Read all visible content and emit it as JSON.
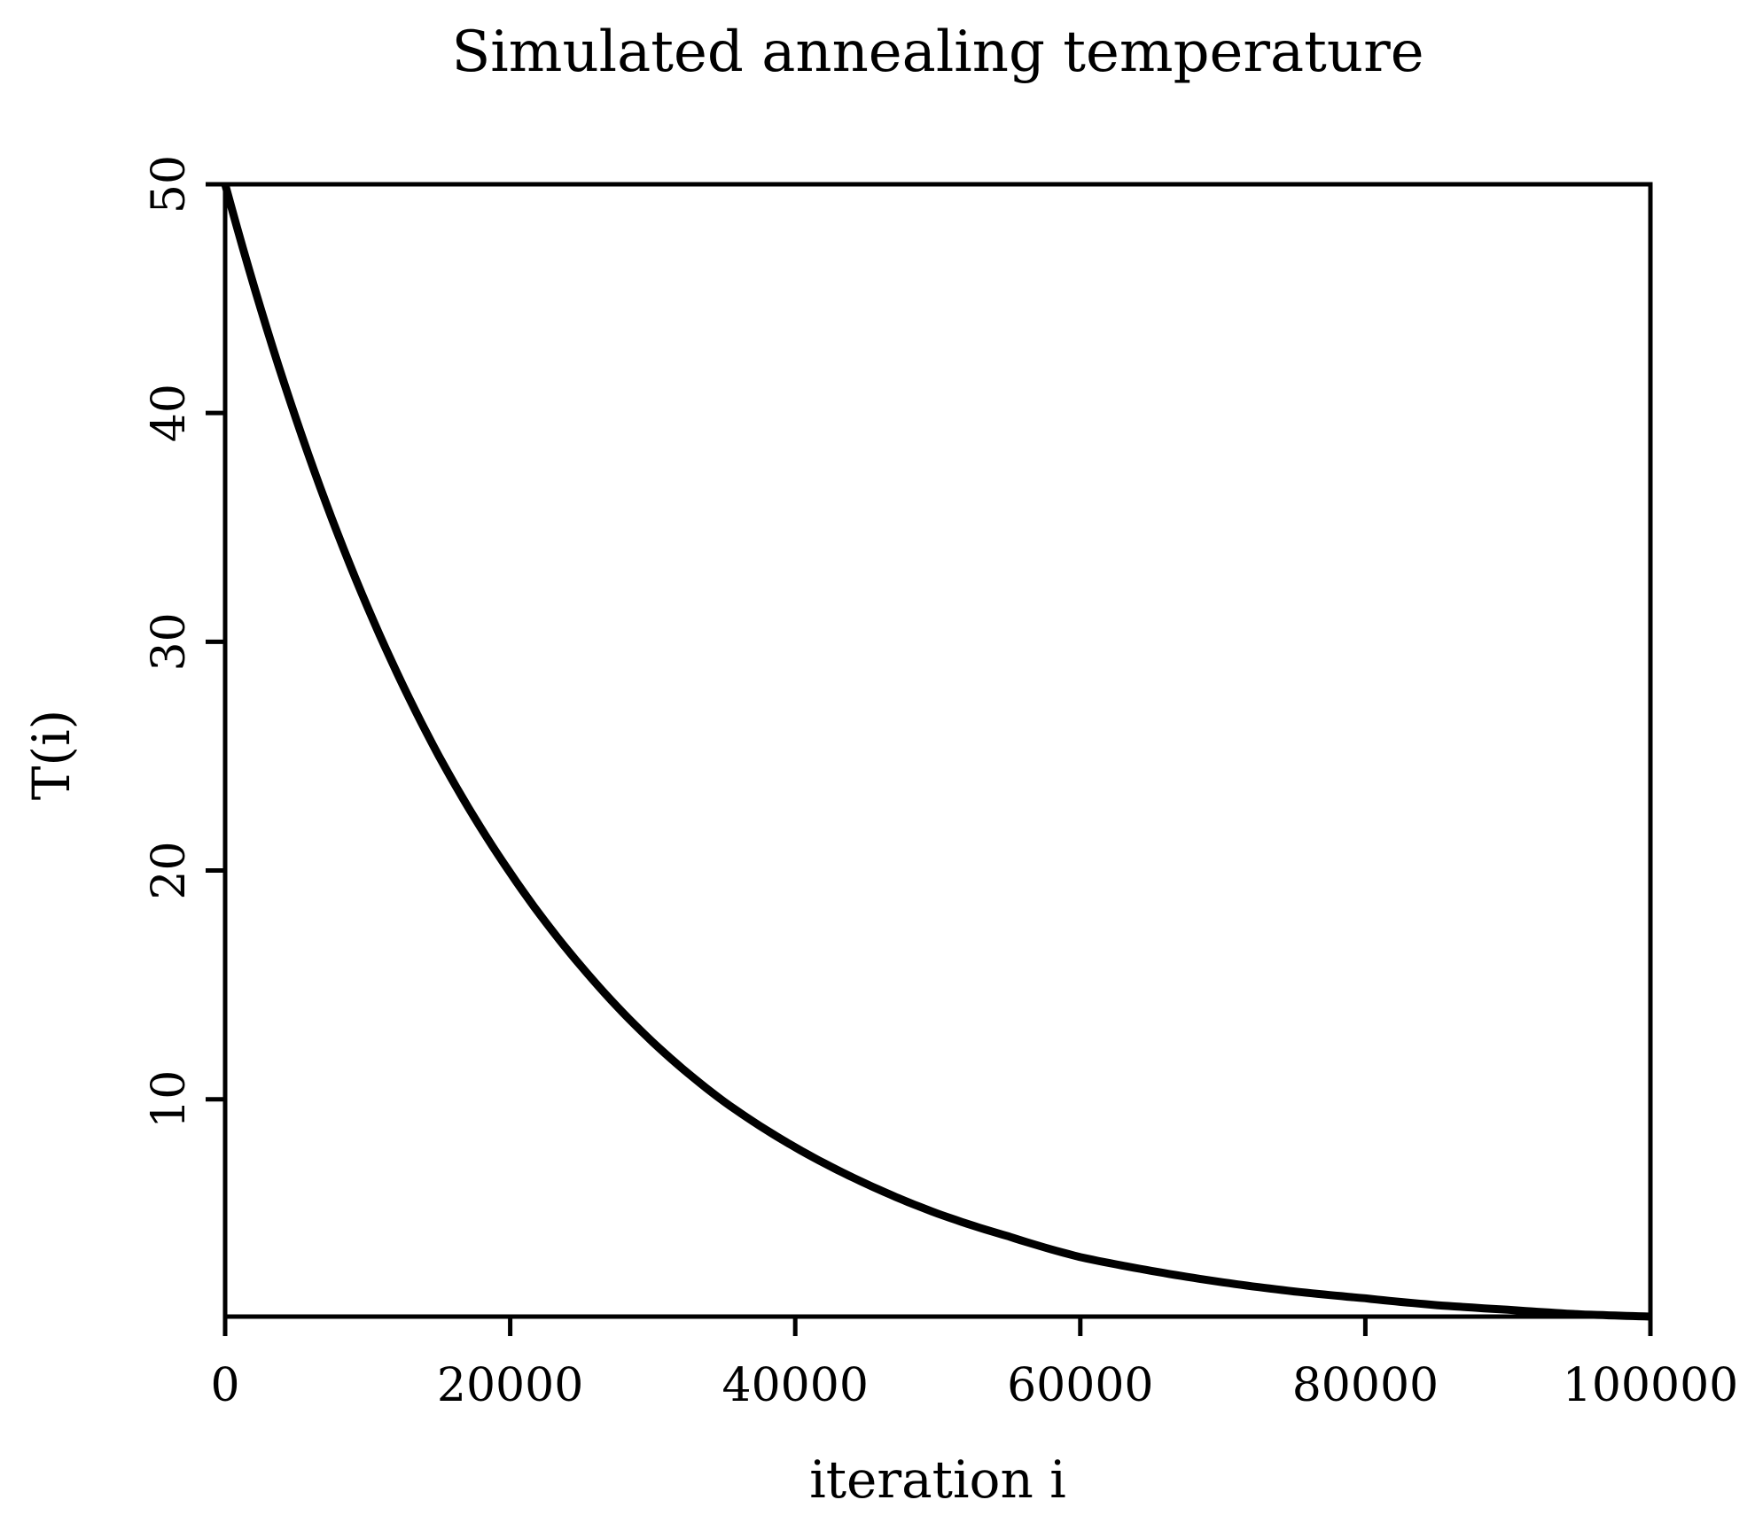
{
  "chart_data": {
    "type": "line",
    "title": "Simulated annealing temperature",
    "xlabel": "iteration i",
    "ylabel": "T(i)",
    "xlim": [
      0,
      100000
    ],
    "ylim": [
      0.5,
      50
    ],
    "x_ticks": [
      0,
      20000,
      40000,
      60000,
      80000,
      100000
    ],
    "x_tick_labels": [
      "0",
      "20000",
      "40000",
      "60000",
      "80000",
      "100000"
    ],
    "y_ticks": [
      10,
      20,
      30,
      40,
      50
    ],
    "y_tick_labels": [
      "10",
      "20",
      "30",
      "40",
      "50"
    ],
    "grid": false,
    "legend": "none",
    "series": [
      {
        "color": "#000000",
        "x": [
          0,
          5000,
          10000,
          15000,
          20000,
          25000,
          30000,
          35000,
          40000,
          45000,
          50000,
          55000,
          60000,
          65000,
          70000,
          75000,
          80000,
          85000,
          90000,
          95000,
          100000
        ],
        "y": [
          50.0,
          39.7,
          31.5,
          25.0,
          19.9,
          15.8,
          12.5,
          9.9,
          7.9,
          6.3,
          5.0,
          4.0,
          3.1,
          2.5,
          2.0,
          1.6,
          1.3,
          1.0,
          0.8,
          0.6,
          0.5
        ]
      }
    ]
  }
}
